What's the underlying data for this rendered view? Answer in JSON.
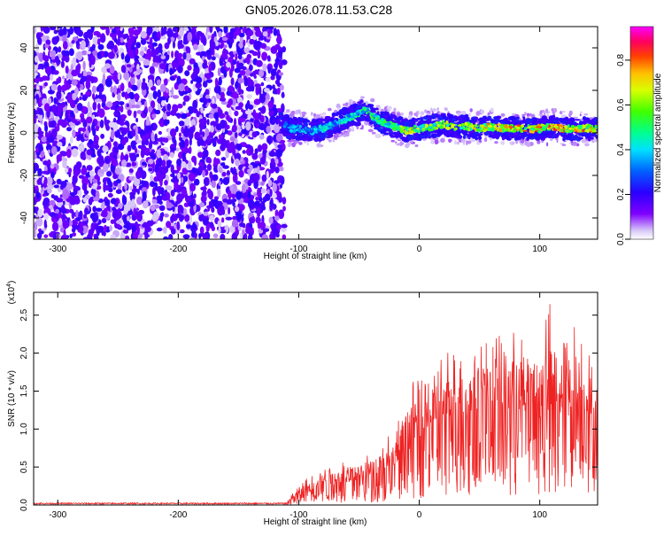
{
  "title": "GN05.2026.078.11.53.C28",
  "chart_data": [
    {
      "type": "heatmap",
      "title": "GN05.2026.078.11.53.C28",
      "xlabel": "Height of straight line (km)",
      "ylabel": "Frequency (Hz)",
      "xlim": [
        -320,
        148
      ],
      "ylim": [
        -50,
        50
      ],
      "xticks": [
        -300,
        -200,
        -100,
        0,
        100
      ],
      "yticks": [
        -40,
        -20,
        0,
        20,
        40
      ],
      "colorbar": {
        "label": "Normalized spectral amplitude",
        "range": [
          0,
          0.95
        ],
        "ticks": [
          0.0,
          0.2,
          0.4,
          0.6,
          0.8
        ],
        "tick_labels": [
          "0.0",
          "0.2",
          "0.4",
          "0.6",
          "0.8"
        ]
      },
      "noise_region": {
        "x_range": [
          -320,
          -112
        ],
        "amplitude": [
          0.0,
          0.45
        ]
      },
      "signal_track": {
        "x": [
          -115,
          -108,
          -100,
          -90,
          -80,
          -70,
          -60,
          -50,
          -45,
          -40,
          -30,
          -20,
          -10,
          0,
          10,
          20,
          30,
          40,
          50,
          60,
          70,
          80,
          90,
          100,
          110,
          120,
          130,
          140,
          148
        ],
        "y": [
          6,
          2,
          2,
          1,
          2,
          4,
          7,
          9,
          11,
          8,
          5,
          3,
          1,
          2,
          3,
          4,
          3,
          3,
          2,
          3,
          2,
          2,
          2,
          2,
          3,
          2,
          2,
          2,
          2
        ],
        "amplitude": [
          0.35,
          0.4,
          0.45,
          0.45,
          0.5,
          0.5,
          0.55,
          0.55,
          0.6,
          0.6,
          0.6,
          0.65,
          0.8,
          0.7,
          0.7,
          0.75,
          0.75,
          0.8,
          0.8,
          0.85,
          0.85,
          0.9,
          0.9,
          0.9,
          0.9,
          0.9,
          0.9,
          0.9,
          0.9
        ]
      }
    },
    {
      "type": "line",
      "xlabel": "Height of straight line (km)",
      "ylabel": "SNR (10 * v/v)",
      "y_multiplier_label": "(x10",
      "y_multiplier_exp": "4",
      "xlim": [
        -320,
        148
      ],
      "ylim": [
        0,
        2.8
      ],
      "xticks": [
        -300,
        -200,
        -100,
        0,
        100
      ],
      "yticks": [
        0.0,
        0.5,
        1.0,
        1.5,
        2.0,
        2.5
      ],
      "ytick_labels": [
        "0.0",
        "0.5",
        "1.0",
        "1.5",
        "2.0",
        "2.5"
      ],
      "color": "#ee2222",
      "envelope": {
        "x": [
          -320,
          -110,
          -100,
          -80,
          -60,
          -40,
          -30,
          -20,
          -10,
          0,
          10,
          20,
          30,
          40,
          50,
          60,
          70,
          80,
          90,
          100,
          110,
          120,
          130,
          140,
          148
        ],
        "mean": [
          0.02,
          0.02,
          0.1,
          0.25,
          0.3,
          0.35,
          0.4,
          0.45,
          0.7,
          0.9,
          1.0,
          1.05,
          1.1,
          1.15,
          1.2,
          1.25,
          1.2,
          1.25,
          1.2,
          1.15,
          1.2,
          1.1,
          1.2,
          1.1,
          1.0
        ],
        "peak": [
          0.04,
          0.04,
          0.3,
          0.5,
          0.6,
          0.7,
          0.9,
          0.95,
          1.6,
          1.7,
          1.9,
          2.0,
          2.05,
          2.1,
          2.3,
          2.2,
          2.25,
          2.3,
          2.2,
          2.4,
          2.75,
          2.3,
          2.55,
          2.05,
          1.5
        ]
      }
    }
  ]
}
